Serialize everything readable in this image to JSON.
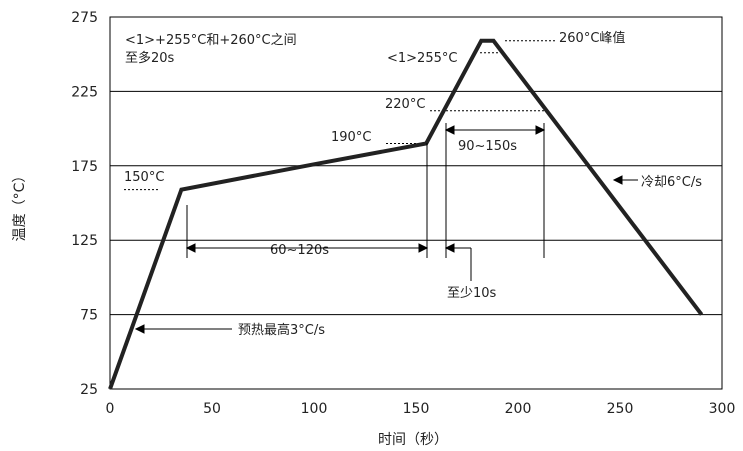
{
  "chart_data": {
    "type": "line",
    "title": "",
    "xlabel": "时间（秒）",
    "ylabel": "温度（°C）",
    "xlim": [
      0,
      300
    ],
    "ylim": [
      25,
      275
    ],
    "x_ticks": [
      "0",
      "50",
      "100",
      "150",
      "200",
      "250",
      "300"
    ],
    "y_ticks": [
      "25",
      "75",
      "125",
      "175",
      "225",
      "275"
    ],
    "grid": "horizontal",
    "series": [
      {
        "x": [
          0,
          35,
          100,
          155,
          182,
          188,
          290
        ],
        "y": [
          25,
          159,
          176,
          190,
          259,
          259,
          75
        ]
      }
    ],
    "annotations": {
      "note_line1": "<1>+255°C和+260°C之间",
      "note_line2": "至多20s",
      "peak": "260°C峰值",
      "t255": "<1>255°C",
      "t220": "220°C",
      "t190": "190°C",
      "t150": "150°C",
      "span_90_150": "90~150s",
      "cooling": "冷却6°C/s",
      "span_60_120": "60~120s",
      "min10": "至少10s",
      "preheat": "预热最高3°C/s"
    }
  }
}
